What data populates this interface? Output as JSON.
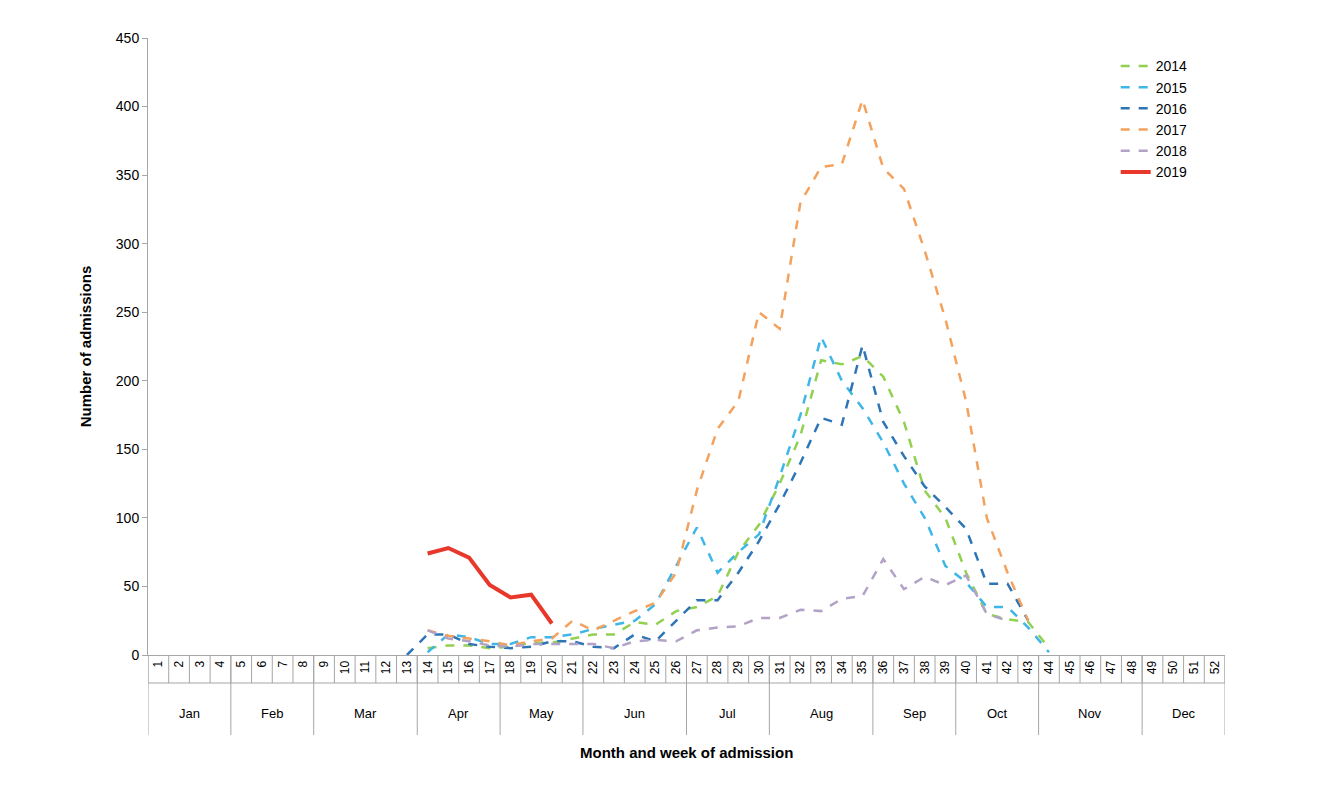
{
  "chart_data": {
    "type": "line",
    "x_label": "Month and week of admission",
    "y_label": "Number of admissions",
    "categories": [
      "1",
      "2",
      "3",
      "4",
      "5",
      "6",
      "7",
      "8",
      "9",
      "10",
      "11",
      "12",
      "13",
      "14",
      "15",
      "16",
      "17",
      "18",
      "19",
      "20",
      "21",
      "22",
      "23",
      "24",
      "25",
      "26",
      "27",
      "28",
      "29",
      "30",
      "31",
      "32",
      "33",
      "34",
      "35",
      "36",
      "37",
      "38",
      "39",
      "40",
      "41",
      "42",
      "43",
      "44",
      "45",
      "46",
      "47",
      "48",
      "49",
      "50",
      "51",
      "52"
    ],
    "x_groups": [
      {
        "label": "Jan",
        "from": "1",
        "to": "4"
      },
      {
        "label": "Feb",
        "from": "5",
        "to": "8"
      },
      {
        "label": "Mar",
        "from": "9",
        "to": "13"
      },
      {
        "label": "Apr",
        "from": "14",
        "to": "17"
      },
      {
        "label": "May",
        "from": "18",
        "to": "21"
      },
      {
        "label": "Jun",
        "from": "22",
        "to": "26"
      },
      {
        "label": "Jul",
        "from": "27",
        "to": "30"
      },
      {
        "label": "Aug",
        "from": "31",
        "to": "35"
      },
      {
        "label": "Sep",
        "from": "36",
        "to": "39"
      },
      {
        "label": "Oct",
        "from": "40",
        "to": "43"
      },
      {
        "label": "Nov",
        "from": "44",
        "to": "48"
      },
      {
        "label": "Dec",
        "from": "49",
        "to": "52"
      }
    ],
    "series": [
      {
        "name": "2014",
        "color": "#92d050",
        "line_style": "dashed",
        "values": [
          null,
          null,
          null,
          null,
          null,
          null,
          null,
          null,
          null,
          null,
          null,
          null,
          null,
          5,
          7,
          7,
          5,
          6,
          9,
          9,
          12,
          15,
          15,
          24,
          22,
          32,
          35,
          43,
          75,
          95,
          125,
          160,
          215,
          212,
          218,
          203,
          170,
          120,
          100,
          60,
          30,
          26,
          24,
          5,
          null,
          null,
          null,
          null,
          null,
          null,
          null,
          null
        ]
      },
      {
        "name": "2015",
        "color": "#3fb6e8",
        "line_style": "dashed",
        "values": [
          null,
          null,
          null,
          null,
          null,
          null,
          null,
          null,
          null,
          null,
          null,
          null,
          null,
          2,
          15,
          13,
          8,
          8,
          13,
          13,
          15,
          19,
          22,
          25,
          37,
          65,
          93,
          60,
          75,
          88,
          130,
          175,
          232,
          200,
          180,
          155,
          125,
          100,
          65,
          53,
          35,
          35,
          20,
          2,
          null,
          null,
          null,
          null,
          null,
          null,
          null,
          null
        ]
      },
      {
        "name": "2016",
        "color": "#2e75b6",
        "line_style": "dashed",
        "values": [
          null,
          null,
          null,
          null,
          null,
          null,
          null,
          null,
          null,
          null,
          null,
          null,
          0,
          15,
          15,
          8,
          6,
          5,
          6,
          10,
          10,
          6,
          5,
          15,
          10,
          25,
          40,
          40,
          60,
          83,
          110,
          140,
          173,
          168,
          226,
          170,
          145,
          123,
          108,
          92,
          52,
          52,
          25,
          null,
          null,
          null,
          null,
          null,
          null,
          null,
          null,
          null
        ]
      },
      {
        "name": "2017",
        "color": "#f4a15d",
        "line_style": "dashed",
        "values": [
          null,
          null,
          null,
          null,
          null,
          null,
          null,
          null,
          null,
          null,
          null,
          null,
          null,
          18,
          14,
          12,
          10,
          7,
          10,
          12,
          25,
          18,
          25,
          32,
          38,
          60,
          120,
          165,
          185,
          250,
          238,
          330,
          356,
          358,
          405,
          355,
          340,
          295,
          245,
          185,
          100,
          60,
          25,
          null,
          null,
          null,
          null,
          null,
          null,
          null,
          null,
          null
        ]
      },
      {
        "name": "2018",
        "color": "#b3a2c7",
        "line_style": "dashed",
        "values": [
          null,
          null,
          null,
          null,
          null,
          null,
          null,
          null,
          null,
          null,
          null,
          null,
          null,
          18,
          12,
          10,
          7,
          6,
          8,
          8,
          8,
          8,
          5,
          10,
          11,
          10,
          18,
          20,
          21,
          27,
          27,
          33,
          32,
          41,
          43,
          70,
          48,
          57,
          51,
          58,
          30,
          25,
          null,
          null,
          null,
          null,
          null,
          null,
          null,
          null,
          null,
          null
        ]
      },
      {
        "name": "2019",
        "color": "#e8382b",
        "line_style": "solid",
        "values": [
          null,
          null,
          null,
          null,
          null,
          null,
          null,
          null,
          null,
          null,
          null,
          null,
          null,
          74,
          78,
          71,
          51,
          42,
          44,
          23,
          null,
          null,
          null,
          null,
          null,
          null,
          null,
          null,
          null,
          null,
          null,
          null,
          null,
          null,
          null,
          null,
          null,
          null,
          null,
          null,
          null,
          null,
          null,
          null,
          null,
          null,
          null,
          null,
          null,
          null,
          null,
          null
        ]
      }
    ],
    "ylim": [
      0,
      450
    ],
    "yticks": [
      0,
      50,
      100,
      150,
      200,
      250,
      300,
      350,
      400,
      450
    ],
    "grid": false,
    "legend": "upper right"
  }
}
